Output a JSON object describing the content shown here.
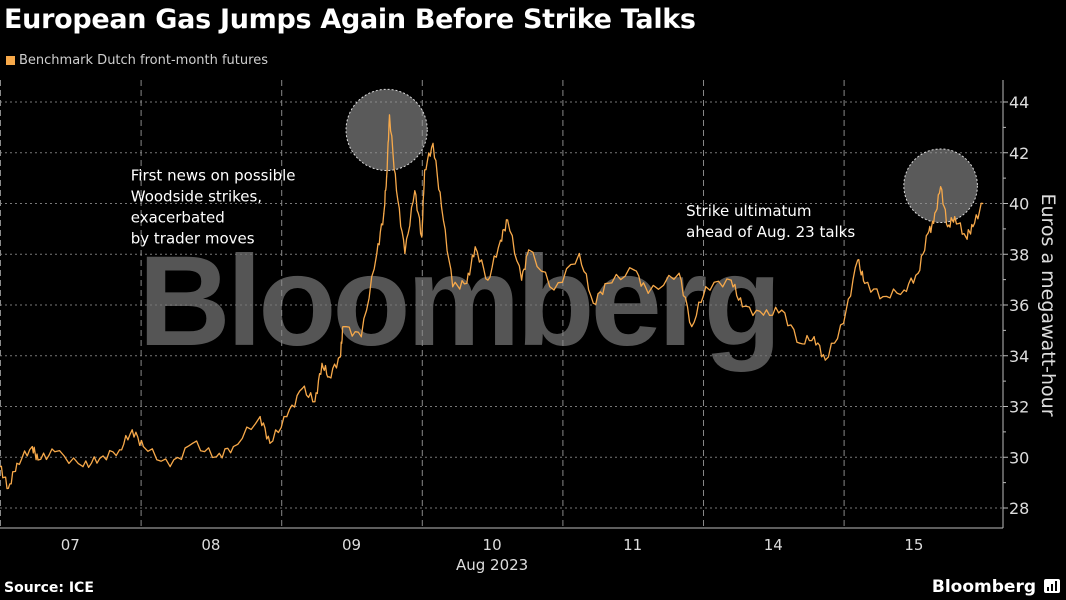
{
  "title": "European Gas Jumps Again Before Strike Talks",
  "source": "Source: ICE",
  "logo": "Bloomberg",
  "chart_data": {
    "type": "line",
    "title": "European Gas Jumps Again Before Strike Talks",
    "watermark": "Bloomberg",
    "legend": [
      {
        "name": "Benchmark Dutch front-month futures",
        "color": "#f7a94a"
      }
    ],
    "legend_placement": "top-left",
    "xlabel": "Aug 2023",
    "ylabel": "Euros a megawatt-hour",
    "x_unit": "trading days since start of Aug 07",
    "xlim": [
      0,
      7.13
    ],
    "ylim": [
      27.5,
      45
    ],
    "yticks": [
      28,
      30,
      32,
      34,
      36,
      38,
      40,
      42,
      44
    ],
    "xticks": [
      {
        "label": "07",
        "at": 0.5
      },
      {
        "label": "08",
        "at": 1.5
      },
      {
        "label": "09",
        "at": 2.5
      },
      {
        "label": "10",
        "at": 3.5
      },
      {
        "label": "11",
        "at": 4.5
      },
      {
        "label": "14",
        "at": 5.5
      },
      {
        "label": "15",
        "at": 6.5
      }
    ],
    "day_separators": [
      1,
      2,
      3,
      4,
      5,
      6
    ],
    "grid": true,
    "series": [
      {
        "name": "Benchmark Dutch front-month futures",
        "x": [
          0,
          0.06,
          0.12,
          0.23,
          0.27,
          0.39,
          0.59,
          0.71,
          0.85,
          0.94,
          1.02,
          1.21,
          1.37,
          1.54,
          1.66,
          1.85,
          1.92,
          2.04,
          2.15,
          2.24,
          2.29,
          2.34,
          2.42,
          2.44,
          2.57,
          2.68,
          2.73,
          2.75,
          2.77,
          2.82,
          2.88,
          2.95,
          3.0,
          3.02,
          3.08,
          3.14,
          3.22,
          3.32,
          3.38,
          3.47,
          3.56,
          3.61,
          3.71,
          3.76,
          3.94,
          4.12,
          4.22,
          4.32,
          4.51,
          4.61,
          4.83,
          4.92,
          5.02,
          5.2,
          5.28,
          5.43,
          5.56,
          5.69,
          5.79,
          5.87,
          6.0,
          6.1,
          6.15,
          6.28,
          6.43,
          6.53,
          6.6,
          6.64,
          6.69,
          6.74,
          6.79,
          6.87,
          6.92,
          6.99
        ],
        "y": [
          29.63,
          28.78,
          29.76,
          30.42,
          29.89,
          30.22,
          29.63,
          29.96,
          30.29,
          31.08,
          30.42,
          29.63,
          30.55,
          30.02,
          30.42,
          31.6,
          30.55,
          31.6,
          32.71,
          32.19,
          33.7,
          33.17,
          33.96,
          35.15,
          34.75,
          38.03,
          39.6,
          41.05,
          43.49,
          40.5,
          38.03,
          40.5,
          38.68,
          41.32,
          42.37,
          39.87,
          36.72,
          36.85,
          38.29,
          36.98,
          38.55,
          39.35,
          36.98,
          38.17,
          36.59,
          38.03,
          36.07,
          36.85,
          37.38,
          36.46,
          37.25,
          35.15,
          36.72,
          36.98,
          35.93,
          35.6,
          35.8,
          34.49,
          34.75,
          33.83,
          35.28,
          37.77,
          36.85,
          36.33,
          36.59,
          37.25,
          38.82,
          39.22,
          40.66,
          39.09,
          39.48,
          38.68,
          39.09,
          40.0
        ]
      }
    ],
    "annotations": [
      {
        "text": [
          "First news on possible",
          "Woodside strikes,",
          "exacerbated",
          "by trader moves"
        ],
        "at": [
          0.93,
          40.9
        ]
      },
      {
        "text": [
          "Strike ultimatum",
          "ahead of Aug. 23 talks"
        ],
        "at": [
          4.88,
          39.5
        ]
      }
    ],
    "highlight_circles": [
      {
        "center": [
          2.75,
          42.9
        ],
        "radius_value": 1.6
      },
      {
        "center": [
          6.69,
          40.7
        ],
        "radius_value": 1.45
      }
    ]
  }
}
